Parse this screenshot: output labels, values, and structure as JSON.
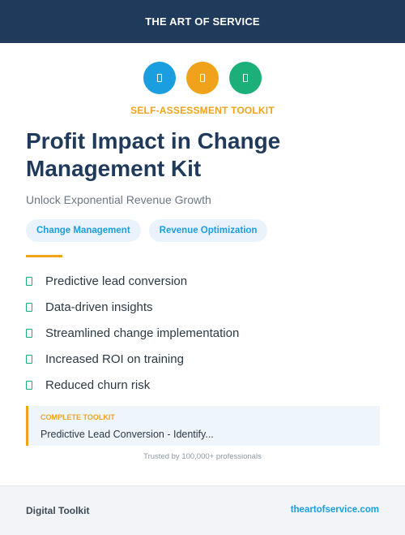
{
  "header": {
    "title": "THE ART OF SERVICE"
  },
  "icons": [
    {
      "name": "icon-blue",
      "color": "#1a9ee0"
    },
    {
      "name": "icon-orange",
      "color": "#f0a31a"
    },
    {
      "name": "icon-green",
      "color": "#1bb07a"
    }
  ],
  "kicker": "SELF-ASSESSMENT TOOLKIT",
  "title": "Profit Impact in Change Management Kit",
  "subtitle": "Unlock Exponential Revenue Growth",
  "tags": [
    "Change Management",
    "Revenue Optimization"
  ],
  "features": [
    "Predictive lead conversion",
    "Data-driven insights",
    "Streamlined change implementation",
    "Increased ROI on training",
    "Reduced churn risk"
  ],
  "callout": {
    "kicker": "COMPLETE TOOLKIT",
    "text": "Predictive Lead Conversion - Identify..."
  },
  "trusted": "Trusted by 100,000+ professionals",
  "footer": {
    "left": "Digital Toolkit",
    "right": "theartofservice.com"
  },
  "colors": {
    "navy": "#1f3a5a",
    "accent_orange": "#f0a31a",
    "accent_blue": "#1a9ee0",
    "accent_green": "#1bb07a"
  }
}
